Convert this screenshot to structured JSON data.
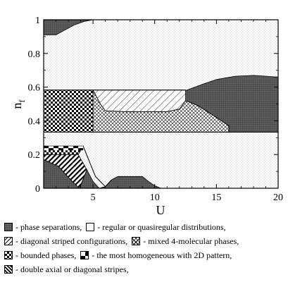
{
  "chart_data": {
    "type": "area",
    "title": "",
    "xlabel": "U",
    "ylabel": "n_f",
    "xlim": [
      1,
      20
    ],
    "ylim": [
      0,
      1
    ],
    "x_ticks": [
      "5",
      "10",
      "15",
      "20"
    ],
    "y_ticks": [
      "0",
      "0.2",
      "0.4",
      "0.6",
      "0.8",
      "1"
    ],
    "grid": false,
    "legend_position": "below",
    "regions": [
      {
        "phase": "regular",
        "polygon": [
          [
            1,
            0
          ],
          [
            20,
            0
          ],
          [
            20,
            1
          ],
          [
            1,
            1
          ]
        ]
      },
      {
        "phase": "separation",
        "polygon": [
          [
            1,
            1
          ],
          [
            1,
            0.91
          ],
          [
            2,
            0.91
          ],
          [
            2.5,
            0.93
          ],
          [
            3.5,
            0.97
          ],
          [
            4.3,
            0.99
          ],
          [
            5,
            1
          ]
        ]
      },
      {
        "phase": "separation",
        "polygon": [
          [
            12.5,
            0.58
          ],
          [
            14,
            0.62
          ],
          [
            15,
            0.645
          ],
          [
            16.5,
            0.665
          ],
          [
            18,
            0.67
          ],
          [
            20,
            0.66
          ],
          [
            20,
            0.333
          ],
          [
            16,
            0.333
          ],
          [
            16,
            0.37
          ],
          [
            15,
            0.42
          ],
          [
            13.5,
            0.49
          ],
          [
            12.5,
            0.52
          ]
        ]
      },
      {
        "phase": "separation",
        "polygon": [
          [
            1,
            0
          ],
          [
            1,
            0.17
          ],
          [
            2.2,
            0.13
          ],
          [
            3.2,
            0.05
          ],
          [
            3.9,
            0
          ],
          [
            4.5,
            0.11
          ],
          [
            5,
            0.04
          ],
          [
            5.5,
            0
          ],
          [
            6,
            0.01
          ],
          [
            6.5,
            0.05
          ],
          [
            7,
            0.07
          ],
          [
            9,
            0.07
          ],
          [
            9.5,
            0.04
          ],
          [
            10,
            0.015
          ],
          [
            10.5,
            0
          ]
        ]
      },
      {
        "phase": "bounded",
        "polygon": [
          [
            1,
            0.333
          ],
          [
            1,
            0.583
          ],
          [
            5,
            0.583
          ],
          [
            5,
            0.333
          ]
        ]
      },
      {
        "phase": "bounded",
        "polygon": [
          [
            1,
            0.2
          ],
          [
            1,
            0.25
          ],
          [
            4.2,
            0.25
          ],
          [
            3.8,
            0.2
          ]
        ]
      },
      {
        "phase": "double_stripes",
        "polygon": [
          [
            1,
            0.17
          ],
          [
            2.2,
            0.13
          ],
          [
            3.2,
            0.05
          ],
          [
            3.9,
            0
          ],
          [
            4.5,
            0.11
          ],
          [
            3.8,
            0.2
          ],
          [
            1,
            0.2
          ]
        ]
      },
      {
        "phase": "mixed",
        "polygon": [
          [
            5,
            0.333
          ],
          [
            5,
            0.583
          ],
          [
            5.6,
            0.5
          ],
          [
            6,
            0.46
          ],
          [
            7.5,
            0.455
          ],
          [
            11,
            0.455
          ],
          [
            12,
            0.47
          ],
          [
            12.5,
            0.52
          ],
          [
            13.5,
            0.49
          ],
          [
            15,
            0.42
          ],
          [
            16,
            0.37
          ],
          [
            16,
            0.333
          ]
        ]
      },
      {
        "phase": "diagonal",
        "polygon": [
          [
            5,
            0.583
          ],
          [
            12.5,
            0.583
          ],
          [
            12.5,
            0.52
          ],
          [
            12,
            0.47
          ],
          [
            11,
            0.455
          ],
          [
            7.5,
            0.455
          ],
          [
            6,
            0.46
          ],
          [
            5.6,
            0.5
          ]
        ]
      }
    ],
    "boundaries": [
      {
        "points": [
          [
            1,
            0.333
          ],
          [
            20,
            0.333
          ]
        ]
      },
      {
        "points": [
          [
            1,
            0.583
          ],
          [
            12.5,
            0.583
          ]
        ]
      },
      {
        "points": [
          [
            1,
            0.25
          ],
          [
            4.2,
            0.25
          ],
          [
            5.2,
            0.07
          ],
          [
            6,
            0.01
          ],
          [
            6.5,
            0.05
          ]
        ]
      }
    ]
  },
  "legend": {
    "rows": [
      [
        {
          "swatch": "sep",
          "icon": "phase-separation-swatch",
          "text": "- phase separations,"
        },
        {
          "swatch": "reg",
          "icon": "regular-distribution-swatch",
          "text": "- regular or quasiregular distributions,"
        }
      ],
      [
        {
          "swatch": "diag",
          "icon": "diagonal-striped-swatch",
          "text": "- diagonal striped configurations,"
        },
        {
          "swatch": "mix",
          "icon": "mixed-4-molecular-swatch",
          "text": "- mixed 4-molecular phases,"
        }
      ],
      [
        {
          "swatch": "bound",
          "icon": "bounded-phase-swatch",
          "text": "- bounded phases,"
        },
        {
          "swatch": "homo",
          "icon": "homogeneous-2d-swatch",
          "text": "- the most homogeneous with 2D pattern,"
        }
      ],
      [
        {
          "swatch": "double",
          "icon": "double-stripes-swatch",
          "text": "- double axial or diagonal stripes,"
        }
      ]
    ]
  }
}
